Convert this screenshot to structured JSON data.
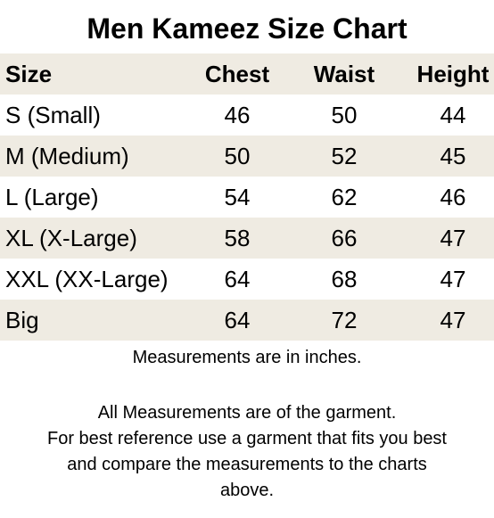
{
  "title": "Men Kameez Size Chart",
  "table": {
    "headers": [
      "Size",
      "Chest",
      "Waist",
      "Height"
    ],
    "rows": [
      [
        "S (Small)",
        "46",
        "50",
        "44"
      ],
      [
        "M (Medium)",
        "50",
        "52",
        "45"
      ],
      [
        "L (Large)",
        "54",
        "62",
        "46"
      ],
      [
        "XL (X-Large)",
        "58",
        "66",
        "47"
      ],
      [
        "XXL (XX-Large)",
        "64",
        "68",
        "47"
      ],
      [
        "Big",
        "64",
        "72",
        "47"
      ]
    ]
  },
  "notes": {
    "units": "Measurements are in inches.",
    "lines": [
      "All Measurements are of the garment.",
      "For best reference use a garment that fits you best",
      "and compare the measurements to the charts",
      "above."
    ]
  },
  "colors": {
    "shaded_row": "#efebe2",
    "text": "#000000",
    "background": "#ffffff"
  }
}
